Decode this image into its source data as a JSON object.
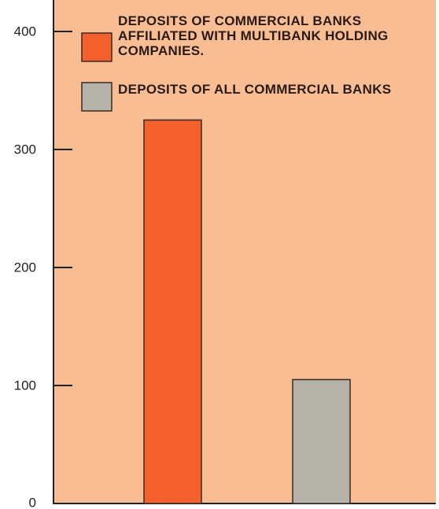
{
  "chart_data": {
    "type": "bar",
    "categories": [
      null,
      null
    ],
    "series": [
      {
        "name": "DEPOSITS OF COMMERCIAL BANKS AFFILIATED WITH MULTIBANK HOLDING COMPANIES.",
        "color": "#f4612f",
        "values": [
          325,
          null
        ]
      },
      {
        "name": "DEPOSITS OF ALL COMMERCIAL BANKS",
        "color": "#b5b2aa",
        "values": [
          null,
          105
        ]
      }
    ],
    "ylim": [
      0,
      400
    ],
    "yticks": [
      0,
      100,
      200,
      300,
      400
    ],
    "background": "#f9bd94"
  }
}
